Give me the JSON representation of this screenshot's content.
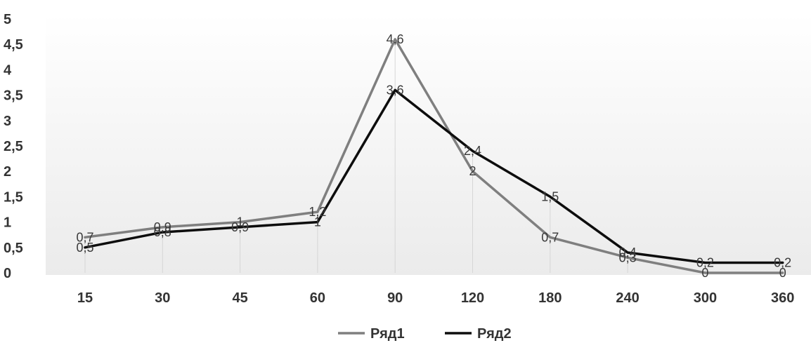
{
  "chart_data": {
    "type": "line",
    "categories": [
      "15",
      "30",
      "45",
      "60",
      "90",
      "120",
      "180",
      "240",
      "300",
      "360"
    ],
    "series": [
      {
        "name": "Ряд1",
        "values": [
          0.7,
          0.9,
          1,
          1.2,
          4.6,
          2,
          0.7,
          0.3,
          0,
          0
        ],
        "color": "#7f7f7f",
        "labels": [
          "0,7",
          "0,9",
          "1",
          "1,2",
          "4,6",
          "2",
          "0,7",
          "0,3",
          "0",
          "0"
        ]
      },
      {
        "name": "Ряд2",
        "values": [
          0.5,
          0.8,
          0.9,
          1,
          3.6,
          2.4,
          1.5,
          0.4,
          0.2,
          0.2
        ],
        "color": "#0d0d0d",
        "labels": [
          "0,5",
          "0,8",
          "0,9",
          "1",
          "3,6",
          "2,4",
          "1,5",
          "0,4",
          "0,2",
          "0,2"
        ]
      }
    ],
    "ylim": [
      0,
      5
    ],
    "yticks": [
      "0",
      "0,5",
      "1",
      "1,5",
      "2",
      "2,5",
      "3",
      "3,5",
      "4",
      "4,5",
      "5"
    ],
    "grid": false,
    "legend": "bottom",
    "title": "",
    "xlabel": "",
    "ylabel": ""
  }
}
